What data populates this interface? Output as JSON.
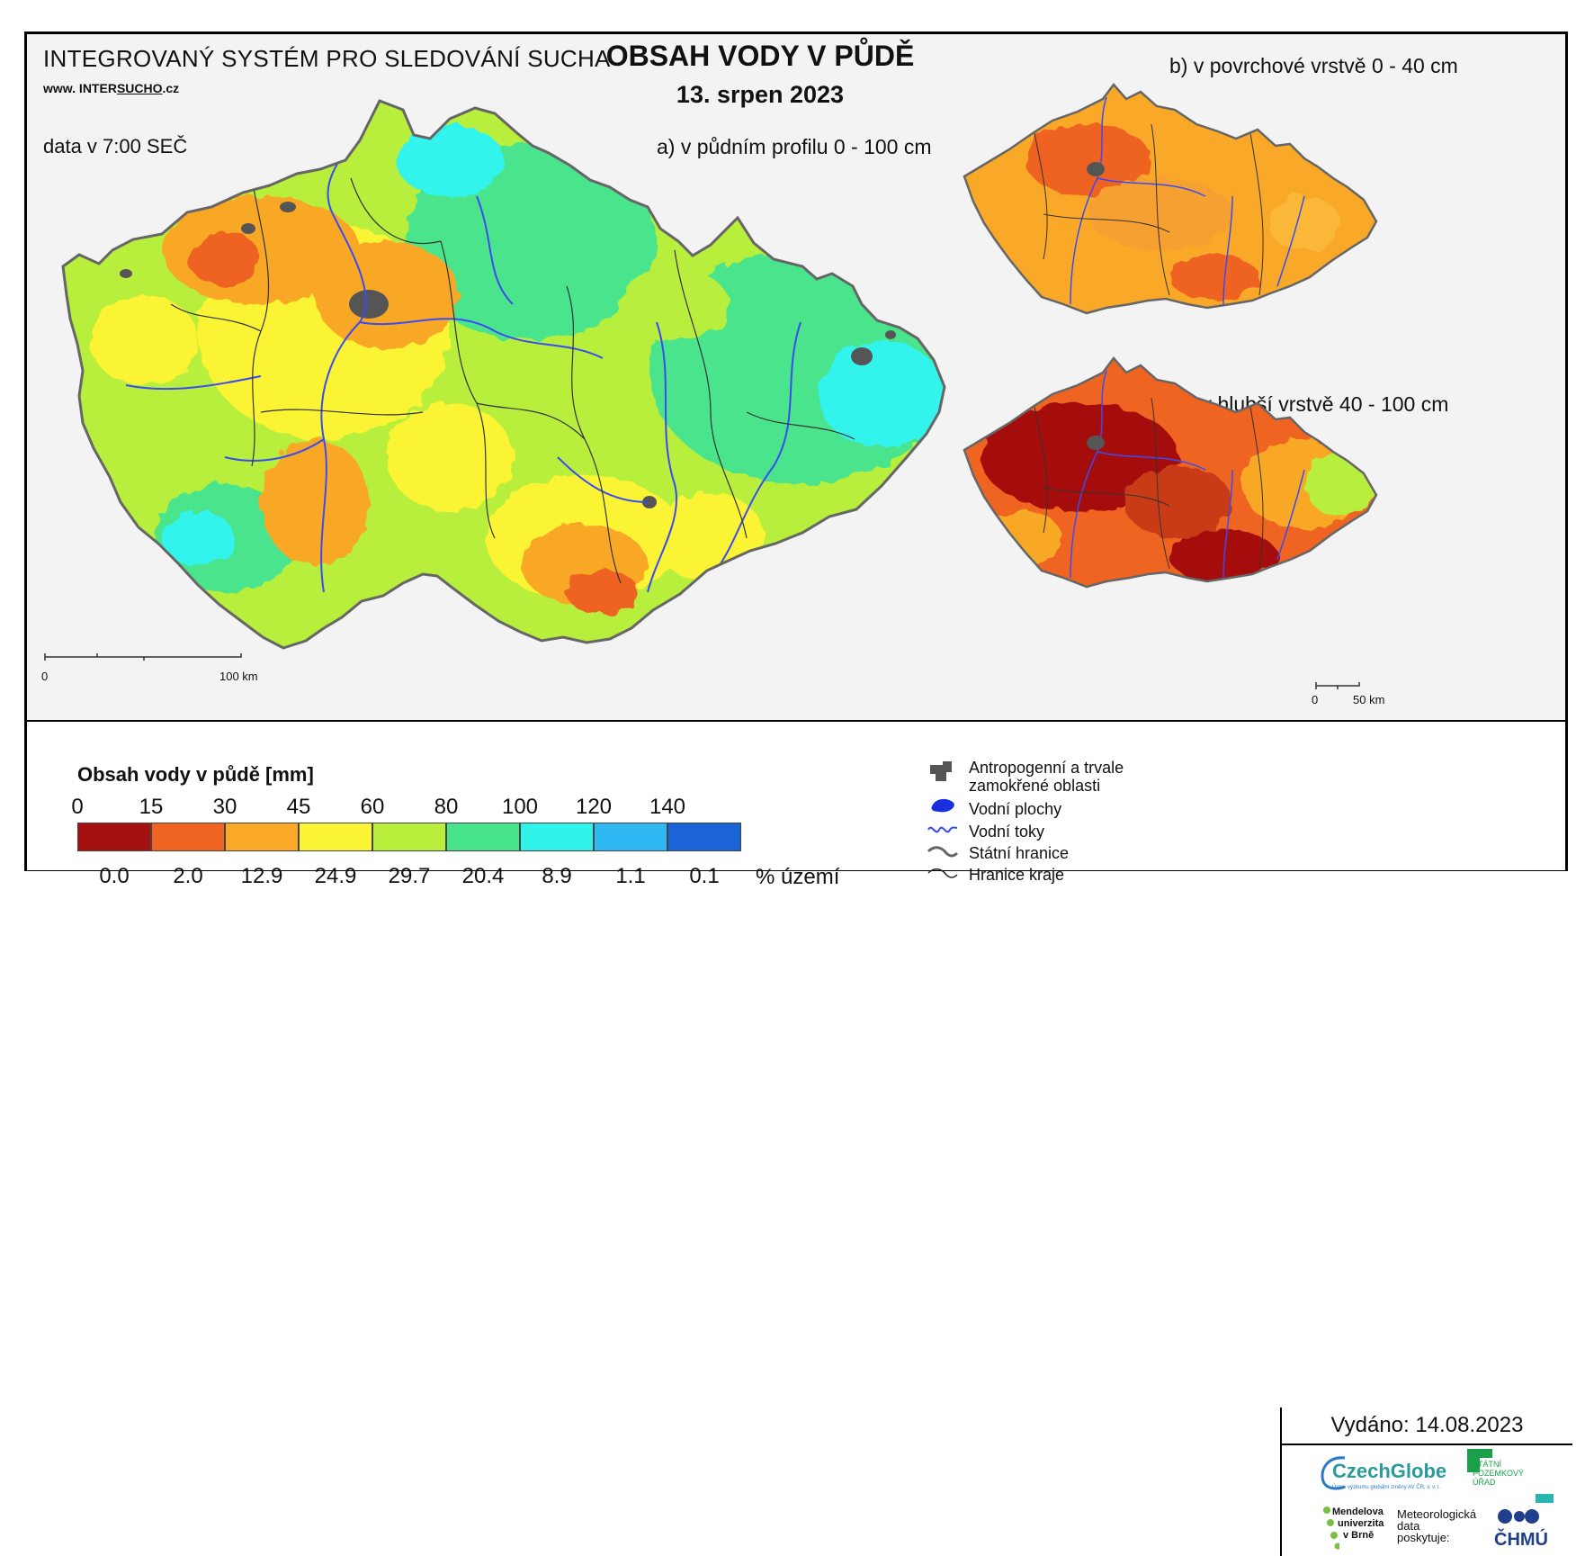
{
  "header": {
    "system_title": "INTEGROVANÝ SYSTÉM PRO SLEDOVÁNÍ SUCHA",
    "website_prefix": "www. INTER",
    "website_u": "SUCHO",
    "website_suffix": ".cz",
    "data_time": "data v 7:00 SEČ",
    "main_title": "OBSAH VODY V PŮDĚ",
    "date": "13. srpen 2023"
  },
  "maps": {
    "a_label": "a) v půdním profilu 0 - 100 cm",
    "b_label": "b) v povrchové vrstvě 0 - 40 cm",
    "c_label": "c) v hlubší vrstvě 40 - 100 cm",
    "scale_main": {
      "zero": "0",
      "end": "100 km"
    },
    "scale_small": {
      "zero": "0",
      "end": "50 km"
    }
  },
  "legend": {
    "title": "Obsah vody v půdě  [mm]",
    "ticks": [
      "0",
      "15",
      "30",
      "45",
      "60",
      "80",
      "100",
      "120",
      "140"
    ],
    "classes": [
      {
        "color": "#a51010",
        "pct": "0.0"
      },
      {
        "color": "#ee6420",
        "pct": "2.0"
      },
      {
        "color": "#f9a828",
        "pct": "12.9"
      },
      {
        "color": "#fbf434",
        "pct": "24.9"
      },
      {
        "color": "#b8ee3c",
        "pct": "29.7"
      },
      {
        "color": "#48e48c",
        "pct": "20.4"
      },
      {
        "color": "#30f4ec",
        "pct": "8.9"
      },
      {
        "color": "#2fb8f4",
        "pct": "1.1"
      },
      {
        "color": "#1a64d8",
        "pct": "0.1"
      }
    ],
    "pct_unit": "% území"
  },
  "symbols": {
    "urban_line1": "Antropogenní a trvale",
    "urban_line2": "zamokřené oblasti",
    "water_bodies": "Vodní plochy",
    "rivers": "Vodní toky",
    "state_border": "Státní hranice",
    "region_border": "Hranice kraje"
  },
  "issued": "Vydáno: 14.08.2023",
  "logos": {
    "czechglobe": "CzechGlobe",
    "czechglobe_sub": "Ústav výzkumu globální změny AV ČR, v. v. i.",
    "spu_line1": "STÁTNÍ",
    "spu_line2": "POZEMKOVÝ",
    "spu_line3": "ÚŘAD",
    "mendel_line1": "Mendelova",
    "mendel_line2": "univerzita",
    "mendel_line3": "v Brně",
    "meteo_line1": "Meteorologická",
    "meteo_line2": "data",
    "meteo_line3": "poskytuje:",
    "chmu": "ČHMÚ"
  },
  "colors": {
    "river": "#3a4cf0",
    "urban": "#555555",
    "border": "#333333"
  }
}
